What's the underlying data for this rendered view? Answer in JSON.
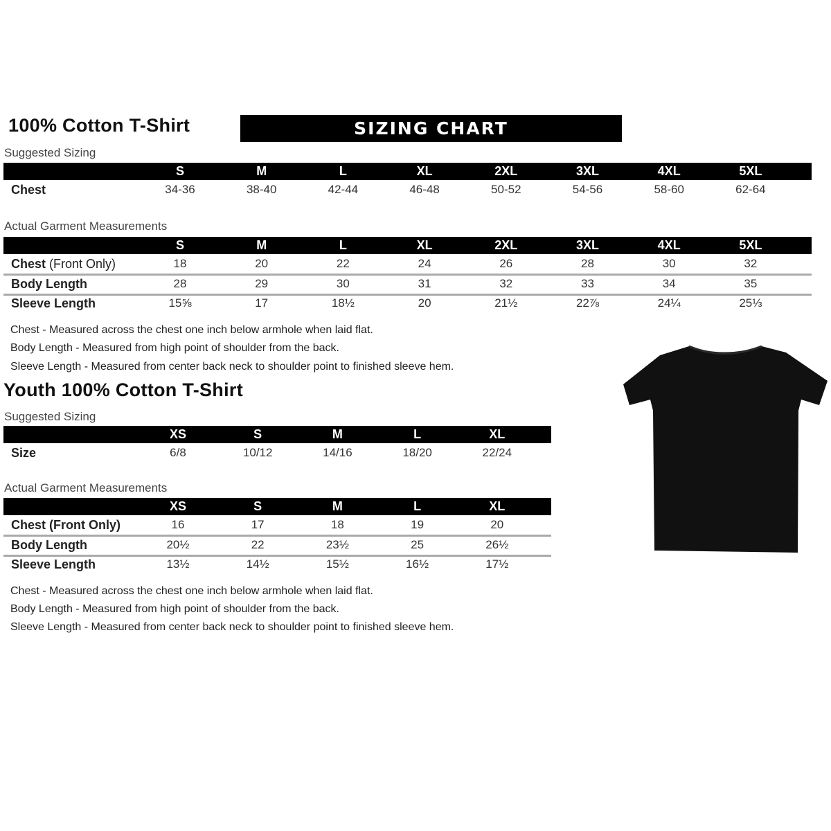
{
  "adult": {
    "title": "100% Cotton T-Shirt",
    "banner": "SIZING CHART",
    "suggested": {
      "label": "Suggested Sizing",
      "sizes": [
        "S",
        "M",
        "L",
        "XL",
        "2XL",
        "3XL",
        "4XL",
        "5XL"
      ],
      "rows": [
        {
          "label": "Chest",
          "values": [
            "34-36",
            "38-40",
            "42-44",
            "46-48",
            "50-52",
            "54-56",
            "58-60",
            "62-64"
          ]
        }
      ]
    },
    "actual": {
      "label": "Actual Garment Measurements",
      "sizes": [
        "S",
        "M",
        "L",
        "XL",
        "2XL",
        "3XL",
        "4XL",
        "5XL"
      ],
      "rows": [
        {
          "label": "Chest",
          "label_note": "(Front Only)",
          "values": [
            "18",
            "20",
            "22",
            "24",
            "26",
            "28",
            "30",
            "32"
          ]
        },
        {
          "label": "Body Length",
          "values": [
            "28",
            "29",
            "30",
            "31",
            "32",
            "33",
            "34",
            "35"
          ]
        },
        {
          "label": "Sleeve Length",
          "values": [
            "15⅝",
            "17",
            "18½",
            "20",
            "21½",
            "22⅞",
            "24¼",
            "25⅓"
          ]
        }
      ]
    },
    "notes": [
      "Chest - Measured across the chest one inch below armhole when laid flat.",
      "Body Length - Measured from high point of shoulder from the back.",
      "Sleeve Length - Measured from center back neck to shoulder point to finished sleeve hem."
    ]
  },
  "youth": {
    "title": "Youth 100% Cotton T-Shirt",
    "suggested": {
      "label": "Suggested Sizing",
      "sizes": [
        "XS",
        "S",
        "M",
        "L",
        "XL"
      ],
      "rows": [
        {
          "label": "Size",
          "values": [
            "6/8",
            "10/12",
            "14/16",
            "18/20",
            "22/24"
          ]
        }
      ]
    },
    "actual": {
      "label": "Actual Garment Measurements",
      "sizes": [
        "XS",
        "S",
        "M",
        "L",
        "XL"
      ],
      "rows": [
        {
          "label": "Chest (Front Only)",
          "values": [
            "16",
            "17",
            "18",
            "19",
            "20"
          ]
        },
        {
          "label": "Body Length",
          "values": [
            "20½",
            "22",
            "23½",
            "25",
            "26½"
          ]
        },
        {
          "label": "Sleeve Length",
          "values": [
            "13½",
            "14½",
            "15½",
            "16½",
            "17½"
          ]
        }
      ]
    },
    "notes": [
      "Chest - Measured across the chest one inch below armhole when laid flat.",
      "Body Length - Measured from high point of shoulder from the back.",
      "Sleeve Length - Measured from center back neck to shoulder point to finished sleeve hem."
    ]
  },
  "image": {
    "icon": "black-tshirt-icon",
    "color": "#111111"
  }
}
